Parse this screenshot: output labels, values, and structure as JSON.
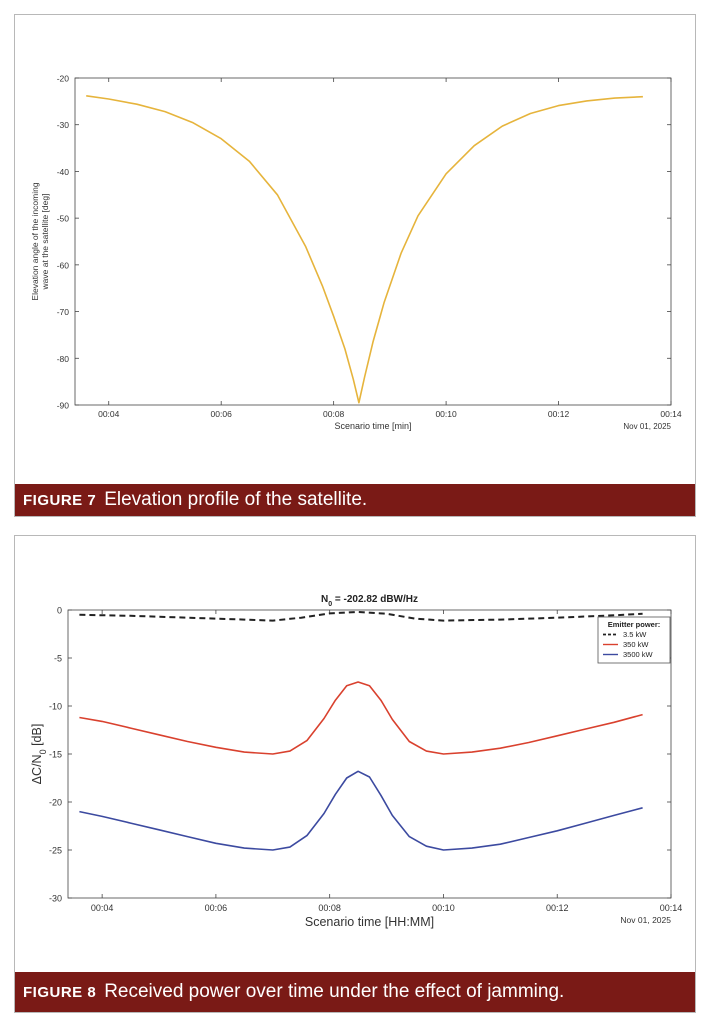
{
  "figures": [
    {
      "label": "FIGURE 7",
      "caption": "Elevation profile of the satellite."
    },
    {
      "label": "FIGURE 8",
      "caption": "Received power over time under the effect of jamming."
    }
  ],
  "colors": {
    "caption_bg": "#7a1a16",
    "orange": "#e6b43c",
    "red": "#d9412e",
    "blue": "#3c4aa0",
    "black": "#222222"
  },
  "chart_data": [
    {
      "type": "line",
      "title": "",
      "xlabel": "Scenario time [min]",
      "ylabel_lines": [
        "Elevation angle of the incoming",
        "wave at the satellite [deg]"
      ],
      "date_label": "Nov 01, 2025",
      "xlim": [
        3.4,
        14
      ],
      "ylim": [
        -90,
        -20
      ],
      "x_ticks": [
        4,
        6,
        8,
        10,
        12,
        14
      ],
      "x_tick_labels": [
        "00:04",
        "00:06",
        "00:08",
        "00:10",
        "00:12",
        "00:14"
      ],
      "y_ticks": [
        -20,
        -30,
        -40,
        -50,
        -60,
        -70,
        -80,
        -90
      ],
      "y_tick_labels": [
        "-20",
        "-30",
        "-40",
        "-50",
        "-60",
        "-70",
        "-80",
        "-90"
      ],
      "series": [
        {
          "name": "elevation",
          "color": "#e6b43c",
          "x": [
            3.6,
            4.0,
            4.5,
            5.0,
            5.5,
            6.0,
            6.5,
            7.0,
            7.5,
            7.8,
            8.0,
            8.2,
            8.35,
            8.45,
            8.55,
            8.7,
            8.9,
            9.2,
            9.5,
            10.0,
            10.5,
            11.0,
            11.5,
            12.0,
            12.5,
            13.0,
            13.5
          ],
          "y": [
            -23.8,
            -24.5,
            -25.6,
            -27.2,
            -29.6,
            -33.0,
            -37.8,
            -45.0,
            -56.0,
            -64.5,
            -71.0,
            -78.0,
            -84.5,
            -89.5,
            -84.0,
            -76.5,
            -68.0,
            -57.5,
            -49.5,
            -40.5,
            -34.5,
            -30.3,
            -27.6,
            -25.9,
            -24.9,
            -24.3,
            -24.0
          ]
        }
      ]
    },
    {
      "type": "line",
      "title_main": "N",
      "title_sub": "0",
      "title_rest": " = -202.82 dBW/Hz",
      "xlabel": "Scenario time [HH:MM]",
      "ylabel_main": "ΔC/N",
      "ylabel_sub": "0",
      "ylabel_rest": " [dB]",
      "date_label": "Nov 01, 2025",
      "xlim": [
        3.4,
        14
      ],
      "ylim": [
        -30,
        0
      ],
      "x_ticks": [
        4,
        6,
        8,
        10,
        12,
        14
      ],
      "x_tick_labels": [
        "00:04",
        "00:06",
        "00:08",
        "00:10",
        "00:12",
        "00:14"
      ],
      "y_ticks": [
        0,
        -5,
        -10,
        -15,
        -20,
        -25,
        -30
      ],
      "y_tick_labels": [
        "0",
        "-5",
        "-10",
        "-15",
        "-20",
        "-25",
        "-30"
      ],
      "legend_title": "Emitter power:",
      "legend_position": "top-right",
      "series": [
        {
          "name": "3.5 kW",
          "color": "#222222",
          "dashed": true,
          "x": [
            3.6,
            4.5,
            5.5,
            6.5,
            7.0,
            7.5,
            8.0,
            8.5,
            9.0,
            9.5,
            10.0,
            11.0,
            12.0,
            13.0,
            13.5
          ],
          "y": [
            -0.5,
            -0.6,
            -0.8,
            -1.0,
            -1.1,
            -0.8,
            -0.35,
            -0.2,
            -0.4,
            -0.9,
            -1.1,
            -1.0,
            -0.8,
            -0.55,
            -0.4
          ]
        },
        {
          "name": "350 kW",
          "color": "#d9412e",
          "dashed": false,
          "x": [
            3.6,
            4.0,
            4.5,
            5.0,
            5.5,
            6.0,
            6.5,
            7.0,
            7.3,
            7.6,
            7.9,
            8.1,
            8.3,
            8.5,
            8.7,
            8.9,
            9.1,
            9.4,
            9.7,
            10.0,
            10.5,
            11.0,
            11.5,
            12.0,
            12.5,
            13.0,
            13.5
          ],
          "y": [
            -11.2,
            -11.6,
            -12.3,
            -13.0,
            -13.7,
            -14.3,
            -14.8,
            -15.0,
            -14.7,
            -13.6,
            -11.3,
            -9.4,
            -7.9,
            -7.5,
            -7.9,
            -9.4,
            -11.4,
            -13.7,
            -14.7,
            -15.0,
            -14.8,
            -14.4,
            -13.8,
            -13.1,
            -12.4,
            -11.7,
            -10.9
          ]
        },
        {
          "name": "3500 kW",
          "color": "#3c4aa0",
          "dashed": false,
          "x": [
            3.6,
            4.0,
            4.5,
            5.0,
            5.5,
            6.0,
            6.5,
            7.0,
            7.3,
            7.6,
            7.9,
            8.1,
            8.3,
            8.5,
            8.7,
            8.9,
            9.1,
            9.4,
            9.7,
            10.0,
            10.5,
            11.0,
            11.5,
            12.0,
            12.5,
            13.0,
            13.5
          ],
          "y": [
            -21.0,
            -21.5,
            -22.2,
            -22.9,
            -23.6,
            -24.3,
            -24.8,
            -25.0,
            -24.7,
            -23.5,
            -21.2,
            -19.2,
            -17.5,
            -16.8,
            -17.4,
            -19.3,
            -21.4,
            -23.6,
            -24.6,
            -25.0,
            -24.8,
            -24.4,
            -23.7,
            -23.0,
            -22.2,
            -21.4,
            -20.6
          ]
        }
      ]
    }
  ]
}
